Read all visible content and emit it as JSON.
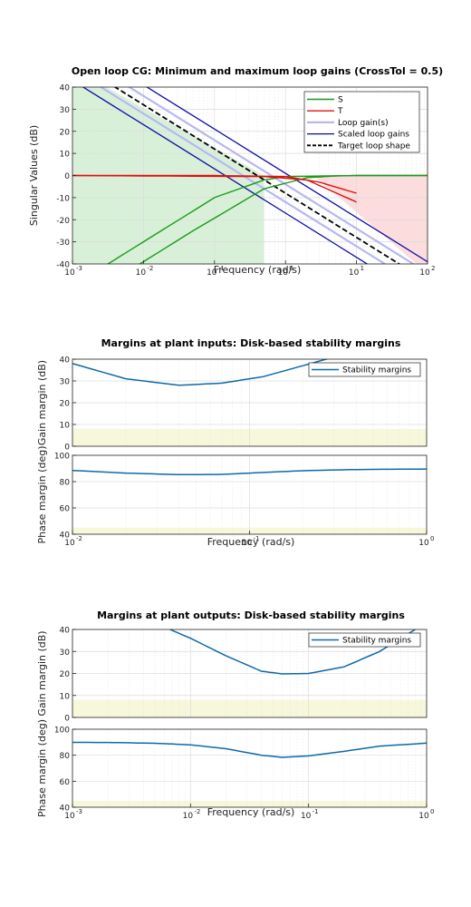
{
  "colors": {
    "S": "#1a9a1a",
    "T": "#e01010",
    "loop_gain": "#b7b7f5",
    "scaled": "#0c0ca8",
    "target": "#000000",
    "stab": "#0d6aa8",
    "zone_green": "#d8f0d8",
    "zone_red": "#fcdcdc",
    "zone_yellow": "#f7f7dc"
  },
  "chart_data": [
    {
      "type": "line",
      "title": "Open loop CG: Minimum and maximum loop gains (CrossTol = 0.5)",
      "xlabel": "Frequency (rad/s)",
      "ylabel": "Singular Values (dB)",
      "xscale": "log",
      "xlim": [
        0.001,
        100
      ],
      "ylim": [
        -40,
        40
      ],
      "yticks": [
        "40",
        "30",
        "20",
        "10",
        "0",
        "-10",
        "-20",
        "-30",
        "-40"
      ],
      "xticks": [
        {
          "base": "10",
          "exp": "-3"
        },
        {
          "base": "10",
          "exp": "-2"
        },
        {
          "base": "10",
          "exp": "-1"
        },
        {
          "base": "10",
          "exp": "0"
        },
        {
          "base": "10",
          "exp": "1"
        },
        {
          "base": "10",
          "exp": "2"
        }
      ],
      "legend": [
        "S",
        "T",
        "Loop gain(s)",
        "Scaled loop gains",
        "Target loop shape"
      ],
      "legend_position": "top-right",
      "grid": true,
      "shaded_regions": [
        "green lower-left",
        "red lower-right"
      ],
      "series": [
        {
          "name": "Target loop shape",
          "x": [
            0.001,
            100
          ],
          "y": [
            52,
            -48
          ]
        },
        {
          "name": "Loop gain(s)",
          "x": [
            0.001,
            100
          ],
          "y": [
            48,
            -52
          ]
        },
        {
          "name": "Loop gain(s)",
          "x": [
            0.001,
            100
          ],
          "y": [
            56,
            -44
          ]
        },
        {
          "name": "Scaled loop gains",
          "x": [
            0.001,
            100
          ],
          "y": [
            43,
            -57
          ]
        },
        {
          "name": "Scaled loop gains",
          "x": [
            0.001,
            100
          ],
          "y": [
            61,
            -39
          ]
        },
        {
          "name": "S",
          "x": [
            0.001,
            0.01,
            0.1,
            0.5,
            1,
            10,
            100
          ],
          "y": [
            -50,
            -30,
            -10,
            -2,
            -0.5,
            0,
            0
          ]
        },
        {
          "name": "S",
          "x": [
            0.005,
            0.05,
            0.5,
            2,
            5,
            10,
            100
          ],
          "y": [
            -45,
            -25,
            -6,
            -1,
            -0.2,
            0,
            0
          ]
        },
        {
          "name": "T",
          "x": [
            0.001,
            0.1,
            1,
            3,
            10
          ],
          "y": [
            0,
            0,
            -0.5,
            -3,
            -8
          ]
        },
        {
          "name": "T",
          "x": [
            0.001,
            0.5,
            2,
            10
          ],
          "y": [
            0,
            -0.5,
            -2,
            -12
          ]
        }
      ]
    },
    {
      "type": "line",
      "title": "Margins at plant inputs: Disk-based stability margins",
      "xlabel": "Frequency (rad/s)",
      "xscale": "log",
      "xlim": [
        0.01,
        1
      ],
      "xticks": [
        {
          "base": "10",
          "exp": "-2"
        },
        {
          "base": "10",
          "exp": "-1"
        },
        {
          "base": "10",
          "exp": "0"
        }
      ],
      "panels": [
        {
          "ylabel": "Gain margin (dB)",
          "ylim": [
            0,
            40
          ],
          "yticks": [
            "40",
            "30",
            "20",
            "10",
            "0"
          ],
          "shaded_band": [
            0,
            8
          ],
          "legend": [
            "Stability margins"
          ],
          "series": [
            {
              "name": "Stability margins",
              "x": [
                0.01,
                0.02,
                0.04,
                0.07,
                0.12,
                0.2,
                0.3
              ],
              "y": [
                38,
                31,
                28,
                29,
                32,
                37,
                41
              ]
            }
          ]
        },
        {
          "ylabel": "Phase margin (deg)",
          "ylim": [
            40,
            100
          ],
          "yticks": [
            "100",
            "80",
            "60",
            "40"
          ],
          "shaded_band": [
            40,
            45
          ],
          "series": [
            {
              "name": "Stability margins",
              "x": [
                0.01,
                0.02,
                0.04,
                0.07,
                0.12,
                0.2,
                0.4,
                1
              ],
              "y": [
                88.5,
                86.5,
                85.3,
                85.5,
                87,
                88.3,
                89.2,
                89.6
              ]
            }
          ]
        }
      ]
    },
    {
      "type": "line",
      "title": "Margins at plant outputs: Disk-based stability margins",
      "xlabel": "Frequency (rad/s)",
      "xscale": "log",
      "xlim": [
        0.001,
        1
      ],
      "xticks": [
        {
          "base": "10",
          "exp": "-3"
        },
        {
          "base": "10",
          "exp": "-2"
        },
        {
          "base": "10",
          "exp": "-1"
        },
        {
          "base": "10",
          "exp": "0"
        }
      ],
      "panels": [
        {
          "ylabel": "Gain margin (dB)",
          "ylim": [
            0,
            40
          ],
          "yticks": [
            "40",
            "30",
            "20",
            "10",
            "0"
          ],
          "shaded_band": [
            0,
            8
          ],
          "legend": [
            "Stability margins"
          ],
          "series": [
            {
              "name": "Stability margins",
              "x": [
                0.0067,
                0.01,
                0.02,
                0.04,
                0.06,
                0.1,
                0.2,
                0.4,
                0.8
              ],
              "y": [
                40,
                36,
                28,
                21,
                19.8,
                20,
                23,
                30,
                40
              ]
            }
          ]
        },
        {
          "ylabel": "Phase margin (deg)",
          "ylim": [
            40,
            100
          ],
          "yticks": [
            "100",
            "80",
            "60",
            "40"
          ],
          "shaded_band": [
            40,
            45
          ],
          "series": [
            {
              "name": "Stability margins",
              "x": [
                0.001,
                0.002,
                0.005,
                0.01,
                0.02,
                0.04,
                0.06,
                0.1,
                0.2,
                0.4,
                1
              ],
              "y": [
                89.9,
                89.8,
                89.2,
                88,
                85,
                80,
                78.4,
                79.5,
                83,
                87,
                89.3
              ]
            }
          ]
        }
      ]
    }
  ]
}
